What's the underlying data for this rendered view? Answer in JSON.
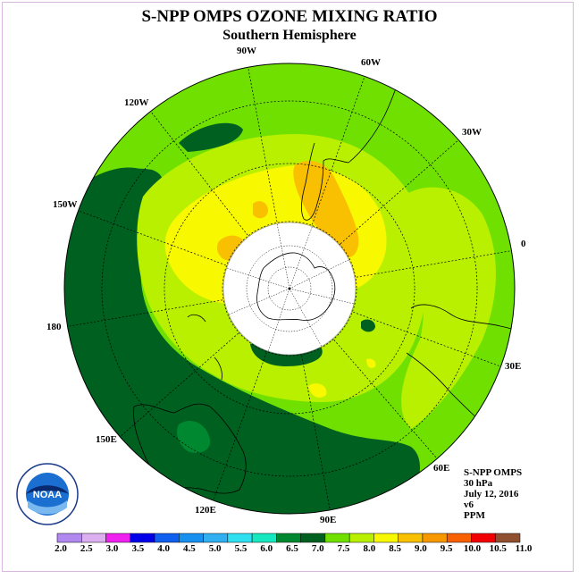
{
  "title": "S-NPP OMPS OZONE MIXING RATIO",
  "subtitle": "Southern Hemisphere",
  "longitude_labels": {
    "lon_90w": "90W",
    "lon_60w": "60W",
    "lon_120w": "120W",
    "lon_30w": "30W",
    "lon_150w": "150W",
    "lon_0": "0",
    "lon_180": "180",
    "lon_30e": "30E",
    "lon_150e": "150E",
    "lon_60e": "60E",
    "lon_120e": "120E",
    "lon_90e": "90E"
  },
  "info": {
    "instrument": "S-NPP OMPS",
    "level": "30 hPa",
    "date": "July 12, 2016",
    "version": "v6",
    "units": "PPM"
  },
  "logo": {
    "text": "NOAA"
  },
  "colorbar": {
    "ticks": [
      "2.0",
      "2.5",
      "3.0",
      "3.5",
      "4.0",
      "4.5",
      "5.0",
      "5.5",
      "6.0",
      "6.5",
      "7.0",
      "7.5",
      "8.0",
      "8.5",
      "9.0",
      "9.5",
      "10.0",
      "10.5",
      "11.0"
    ],
    "colors": [
      "#b088f0",
      "#dcb0f0",
      "#f020f0",
      "#0000e8",
      "#1060f0",
      "#1890f0",
      "#30b0f0",
      "#30e0f0",
      "#18e8c0",
      "#008830",
      "#006020",
      "#70e000",
      "#b8f000",
      "#f8f800",
      "#f8c000",
      "#f89800",
      "#f86000",
      "#f00000",
      "#905030"
    ]
  },
  "map_colors": {
    "dark_green": "#006020",
    "mid_green": "#70e000",
    "yellow_green": "#b8f000",
    "yellow": "#f8f800",
    "gold": "#f8c000",
    "green_6_0": "#008830"
  }
}
